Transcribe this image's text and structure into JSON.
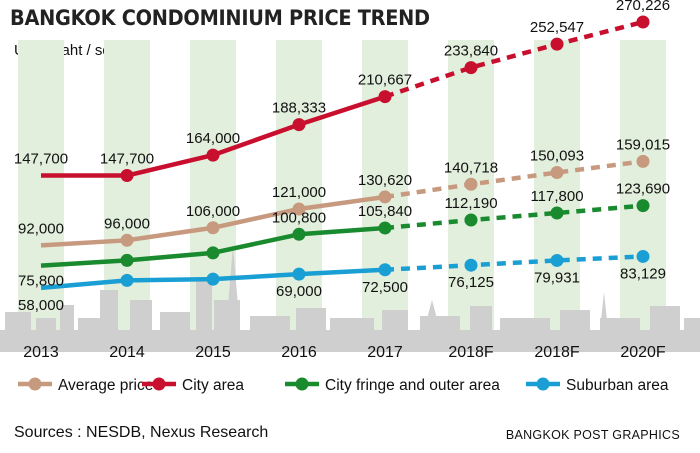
{
  "header": {
    "title": "BANGKOK CONDOMINIUM PRICE TREND",
    "unit": "Unit : baht / sq m"
  },
  "footer": {
    "sources": "Sources : NESDB, Nexus Research",
    "credit": "BANGKOK POST GRAPHICS"
  },
  "chart_data": {
    "type": "line",
    "title": "BANGKOK CONDOMINIUM PRICE TREND",
    "ylabel": "Unit : baht / sq m",
    "categories": [
      "2013",
      "2014",
      "2015",
      "2016",
      "2017",
      "2018F",
      "2018F",
      "2020F"
    ],
    "forecast_from_index": 4,
    "series": [
      {
        "name": "Average price",
        "color": "#c79a7f",
        "values": [
          92000,
          96000,
          106000,
          121000,
          130620,
          140718,
          150093,
          159015
        ],
        "labels": [
          "92,000",
          "96,000",
          "106,000",
          "121,000",
          "130,620",
          "140,718",
          "150,093",
          "159,015"
        ]
      },
      {
        "name": "City area",
        "color": "#c8102e",
        "values": [
          147700,
          147700,
          164000,
          188333,
          210667,
          233840,
          252547,
          270226
        ],
        "labels": [
          "147,700",
          "147,700",
          "164,000",
          "188,333",
          "210,667",
          "233,840",
          "252,547",
          "270,226"
        ]
      },
      {
        "name": "City fringe and outer area",
        "color": "#1a8a2e",
        "values": [
          75800,
          80000,
          86000,
          100800,
          105840,
          112190,
          117800,
          123690
        ],
        "labels": [
          "75,800",
          "",
          "",
          "100,800",
          "105,840",
          "112,190",
          "117,800",
          "123,690"
        ]
      },
      {
        "name": "Suburban area",
        "color": "#1a9fd4",
        "values": [
          58000,
          64000,
          65000,
          69000,
          72500,
          76125,
          79931,
          83129
        ],
        "labels": [
          "58,000",
          "",
          "",
          "69,000",
          "72,500",
          "76,125",
          "79,931",
          "83,129"
        ]
      }
    ],
    "grid": false,
    "legend_position": "bottom"
  }
}
